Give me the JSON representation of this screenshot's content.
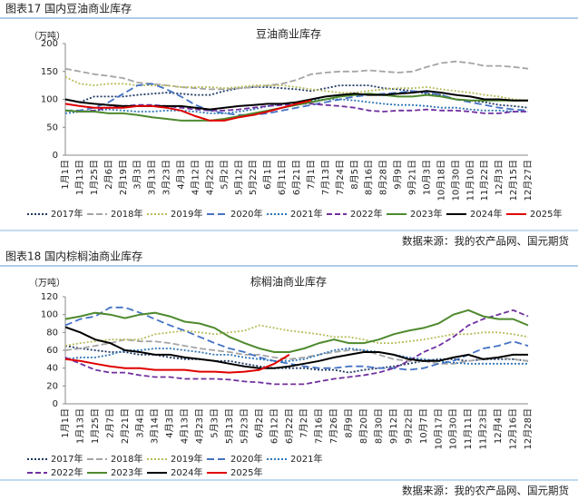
{
  "chart_data": [
    {
      "type": "line",
      "caption": "图表17 国内豆油商业库存",
      "title": "豆油商业库存",
      "y_label": "（万吨）",
      "source": "数据来源：我的农产品网、国元期货",
      "legend": "bottom",
      "ylim": [
        0,
        200
      ],
      "yticks": [
        0,
        50,
        100,
        150,
        200
      ],
      "categories": [
        "1月1日",
        "1月13日",
        "1月25日",
        "2月6日",
        "2月19日",
        "3月3日",
        "3月13日",
        "3月23日",
        "4月3日",
        "4月12日",
        "4月22日",
        "5月2日",
        "5月12日",
        "5月22日",
        "6月1日",
        "6月11日",
        "6月21日",
        "7月1日",
        "7月13日",
        "7月24日",
        "8月5日",
        "8月16日",
        "8月28日",
        "9月9日",
        "9月21日",
        "10月3日",
        "10月18日",
        "10月30日",
        "11月10日",
        "11月22日",
        "12月3日",
        "12月15日",
        "12月27日"
      ],
      "series": [
        {
          "name": "2017年",
          "color": "#1f3864",
          "dash": "2,2",
          "values": [
            100,
            95,
            105,
            105,
            105,
            108,
            110,
            112,
            110,
            108,
            108,
            115,
            120,
            122,
            122,
            120,
            118,
            115,
            120,
            125,
            125,
            125,
            120,
            118,
            115,
            110,
            108,
            100,
            98,
            95,
            90,
            88,
            85
          ]
        },
        {
          "name": "2018年",
          "color": "#a5a5a5",
          "dash": "7,3",
          "values": [
            155,
            150,
            145,
            142,
            138,
            130,
            128,
            125,
            122,
            120,
            118,
            118,
            120,
            122,
            125,
            128,
            135,
            145,
            148,
            150,
            150,
            152,
            150,
            148,
            150,
            158,
            165,
            168,
            165,
            160,
            160,
            158,
            155
          ]
        },
        {
          "name": "2019年",
          "color": "#b8bd5c",
          "dash": "2,2",
          "values": [
            140,
            128,
            125,
            128,
            128,
            125,
            125,
            125,
            122,
            122,
            122,
            120,
            122,
            125,
            125,
            125,
            122,
            118,
            115,
            112,
            112,
            115,
            118,
            120,
            120,
            122,
            118,
            115,
            112,
            108,
            105,
            100,
            98
          ]
        },
        {
          "name": "2020年",
          "color": "#4472c4",
          "dash": "8,4",
          "values": [
            80,
            80,
            85,
            95,
            110,
            125,
            128,
            118,
            105,
            90,
            80,
            75,
            72,
            72,
            75,
            80,
            85,
            90,
            95,
            100,
            105,
            108,
            110,
            112,
            115,
            112,
            108,
            100,
            95,
            90,
            85,
            82,
            80
          ]
        },
        {
          "name": "2021年",
          "color": "#2e75b6",
          "dash": "2,2",
          "values": [
            75,
            78,
            80,
            82,
            80,
            78,
            78,
            80,
            80,
            78,
            75,
            75,
            78,
            82,
            88,
            92,
            95,
            98,
            100,
            100,
            98,
            95,
            92,
            90,
            90,
            88,
            85,
            85,
            82,
            80,
            80,
            78,
            78
          ]
        },
        {
          "name": "2022年",
          "color": "#7030a0",
          "dash": "6,3",
          "values": [
            80,
            78,
            80,
            85,
            88,
            90,
            90,
            88,
            85,
            82,
            80,
            80,
            82,
            85,
            88,
            90,
            92,
            92,
            90,
            88,
            85,
            80,
            78,
            80,
            80,
            82,
            80,
            80,
            78,
            75,
            75,
            78,
            78
          ]
        },
        {
          "name": "2023年",
          "color": "#4e8a2e",
          "dash": "",
          "values": [
            80,
            78,
            78,
            75,
            75,
            72,
            68,
            65,
            62,
            62,
            62,
            65,
            70,
            75,
            80,
            85,
            90,
            95,
            100,
            105,
            108,
            110,
            108,
            105,
            105,
            108,
            105,
            100,
            98,
            98,
            98,
            98,
            98
          ]
        },
        {
          "name": "2024年",
          "color": "#000000",
          "dash": "",
          "values": [
            100,
            95,
            92,
            90,
            88,
            88,
            88,
            88,
            88,
            85,
            82,
            85,
            88,
            90,
            92,
            92,
            95,
            100,
            105,
            108,
            110,
            108,
            108,
            110,
            112,
            115,
            112,
            108,
            105,
            100,
            100,
            98,
            98
          ]
        },
        {
          "name": "2025年",
          "color": "#e00000",
          "dash": "",
          "values": [
            92,
            88,
            85,
            85,
            85,
            88,
            88,
            85,
            80,
            70,
            62,
            62,
            68,
            72,
            78,
            85,
            92,
            98,
            null,
            null,
            null,
            null,
            null,
            null,
            null,
            null,
            null,
            null,
            null,
            null,
            null,
            null,
            null
          ]
        }
      ]
    },
    {
      "type": "line",
      "caption": "图表18 国内棕榈油商业库存",
      "title": "棕榈油商业库存",
      "y_label": "（万吨）",
      "source": "数据来源：我的农产品网、国元期货",
      "legend": "bottom",
      "ylim": [
        0,
        120
      ],
      "yticks": [
        0,
        20,
        40,
        60,
        80,
        100,
        120
      ],
      "categories": [
        "1月1日",
        "1月13日",
        "1月25日",
        "2月7日",
        "2月21日",
        "3月4日",
        "3月14日",
        "4月3日",
        "4月13日",
        "4月23日",
        "5月3日",
        "5月13日",
        "5月23日",
        "6月2日",
        "6月12日",
        "6月22日",
        "7月2日",
        "7月16日",
        "7月26日",
        "8月9日",
        "8月20日",
        "8月30日",
        "9月12日",
        "9月22日",
        "10月7日",
        "10月17日",
        "10月30日",
        "11月11日",
        "11月23日",
        "12月4日",
        "12月16日",
        "12月28日"
      ],
      "series": [
        {
          "name": "2017年",
          "color": "#1f3864",
          "dash": "2,2",
          "values": [
            65,
            62,
            60,
            58,
            58,
            55,
            55,
            52,
            50,
            50,
            48,
            48,
            45,
            42,
            40,
            40,
            40,
            38,
            38,
            35,
            38,
            40,
            42,
            45,
            48,
            50,
            50,
            48,
            50,
            50,
            50,
            48
          ]
        },
        {
          "name": "2018年",
          "color": "#a5a5a5",
          "dash": "7,3",
          "values": [
            60,
            62,
            65,
            68,
            72,
            70,
            70,
            68,
            65,
            62,
            60,
            58,
            55,
            55,
            52,
            50,
            52,
            55,
            58,
            60,
            60,
            55,
            50,
            48,
            48,
            45,
            45,
            48,
            50,
            52,
            50,
            48
          ]
        },
        {
          "name": "2019年",
          "color": "#b8bd5c",
          "dash": "2,2",
          "values": [
            65,
            68,
            70,
            72,
            72,
            72,
            78,
            80,
            82,
            80,
            78,
            80,
            82,
            88,
            85,
            82,
            80,
            78,
            75,
            75,
            72,
            68,
            68,
            70,
            72,
            75,
            78,
            78,
            80,
            80,
            78,
            75
          ]
        },
        {
          "name": "2020年",
          "color": "#4472c4",
          "dash": "8,4",
          "values": [
            88,
            95,
            98,
            108,
            108,
            102,
            95,
            88,
            82,
            75,
            68,
            62,
            58,
            52,
            48,
            45,
            42,
            40,
            40,
            42,
            42,
            40,
            40,
            38,
            40,
            45,
            48,
            55,
            62,
            65,
            70,
            65
          ]
        },
        {
          "name": "2021年",
          "color": "#2e75b6",
          "dash": "2,2",
          "values": [
            50,
            52,
            52,
            55,
            60,
            60,
            62,
            62,
            60,
            58,
            55,
            55,
            52,
            50,
            48,
            48,
            50,
            55,
            60,
            62,
            60,
            58,
            55,
            52,
            50,
            48,
            46,
            45,
            45,
            45,
            45,
            45
          ]
        },
        {
          "name": "2022年",
          "color": "#7030a0",
          "dash": "6,3",
          "values": [
            52,
            45,
            38,
            35,
            35,
            32,
            30,
            30,
            28,
            28,
            28,
            27,
            25,
            24,
            22,
            22,
            22,
            25,
            28,
            30,
            32,
            35,
            40,
            48,
            58,
            65,
            75,
            88,
            95,
            100,
            105,
            98
          ]
        },
        {
          "name": "2023年",
          "color": "#4e8a2e",
          "dash": "",
          "values": [
            95,
            98,
            102,
            100,
            96,
            100,
            102,
            98,
            92,
            90,
            85,
            75,
            68,
            62,
            58,
            58,
            62,
            68,
            72,
            68,
            68,
            72,
            78,
            82,
            85,
            90,
            100,
            105,
            98,
            95,
            95,
            88
          ]
        },
        {
          "name": "2024年",
          "color": "#000000",
          "dash": "",
          "values": [
            86,
            80,
            72,
            68,
            60,
            58,
            55,
            55,
            52,
            50,
            48,
            45,
            42,
            40,
            40,
            42,
            45,
            48,
            52,
            55,
            58,
            58,
            55,
            50,
            48,
            48,
            52,
            55,
            50,
            52,
            55,
            55
          ]
        },
        {
          "name": "2025年",
          "color": "#e00000",
          "dash": "",
          "values": [
            50,
            48,
            45,
            42,
            40,
            40,
            38,
            38,
            38,
            36,
            36,
            35,
            36,
            38,
            45,
            55,
            null,
            null,
            null,
            null,
            null,
            null,
            null,
            null,
            null,
            null,
            null,
            null,
            null,
            null,
            null,
            null
          ]
        }
      ]
    }
  ]
}
